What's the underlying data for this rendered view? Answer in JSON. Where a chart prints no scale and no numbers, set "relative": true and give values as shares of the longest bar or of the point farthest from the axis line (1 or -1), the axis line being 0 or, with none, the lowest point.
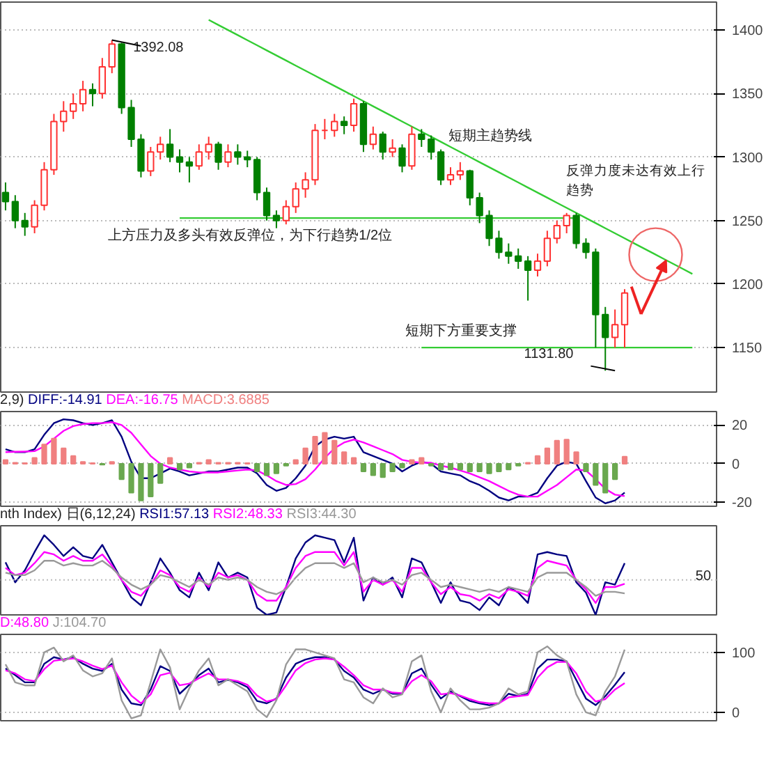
{
  "chart_data": [
    {
      "type": "candlestick",
      "categories": [
        null,
        null,
        null,
        null,
        null,
        null,
        null,
        null,
        null,
        null,
        null,
        null,
        null,
        null,
        null,
        null,
        null,
        null,
        null,
        null,
        null,
        null,
        null,
        null,
        null,
        null,
        null,
        null,
        null,
        null,
        null,
        null,
        null,
        null,
        null,
        null,
        null,
        null,
        null,
        null,
        null,
        null,
        null,
        null,
        null,
        null,
        null,
        null,
        null,
        null,
        null,
        null,
        null,
        null,
        null,
        null,
        null,
        null,
        null,
        null,
        null,
        null,
        null,
        null,
        null,
        null,
        null,
        null,
        null,
        null,
        null,
        null,
        null,
        null
      ],
      "ohlc": [
        [
          1272,
          1280,
          1258,
          1265
        ],
        [
          1265,
          1270,
          1244,
          1250
        ],
        [
          1250,
          1256,
          1238,
          1245
        ],
        [
          1245,
          1266,
          1240,
          1262
        ],
        [
          1262,
          1296,
          1258,
          1290
        ],
        [
          1290,
          1334,
          1286,
          1328
        ],
        [
          1328,
          1344,
          1320,
          1336
        ],
        [
          1336,
          1350,
          1330,
          1342
        ],
        [
          1342,
          1360,
          1336,
          1353
        ],
        [
          1353,
          1358,
          1340,
          1350
        ],
        [
          1350,
          1378,
          1346,
          1371
        ],
        [
          1371,
          1392.08,
          1366,
          1389
        ],
        [
          1389,
          1390,
          1334,
          1339
        ],
        [
          1339,
          1345,
          1308,
          1314
        ],
        [
          1314,
          1318,
          1284,
          1289
        ],
        [
          1289,
          1308,
          1285,
          1304
        ],
        [
          1304,
          1316,
          1298,
          1310
        ],
        [
          1310,
          1322,
          1296,
          1300
        ],
        [
          1300,
          1306,
          1288,
          1296
        ],
        [
          1296,
          1300,
          1280,
          1293
        ],
        [
          1293,
          1310,
          1290,
          1304
        ],
        [
          1304,
          1316,
          1298,
          1310
        ],
        [
          1310,
          1312,
          1290,
          1296
        ],
        [
          1296,
          1310,
          1292,
          1304
        ],
        [
          1304,
          1310,
          1294,
          1300
        ],
        [
          1300,
          1305,
          1292,
          1298
        ],
        [
          1298,
          1300,
          1266,
          1272
        ],
        [
          1272,
          1276,
          1250,
          1254
        ],
        [
          1254,
          1258,
          1244,
          1250
        ],
        [
          1250,
          1266,
          1247,
          1261
        ],
        [
          1261,
          1280,
          1256,
          1275
        ],
        [
          1275,
          1288,
          1268,
          1282
        ],
        [
          1282,
          1326,
          1278,
          1321
        ],
        [
          1321,
          1330,
          1314,
          1321
        ],
        [
          1321,
          1334,
          1316,
          1328
        ],
        [
          1328,
          1332,
          1318,
          1325
        ],
        [
          1325,
          1346,
          1320,
          1342
        ],
        [
          1342,
          1344,
          1304,
          1310
        ],
        [
          1310,
          1324,
          1306,
          1318
        ],
        [
          1318,
          1320,
          1298,
          1304
        ],
        [
          1304,
          1314,
          1300,
          1307
        ],
        [
          1307,
          1310,
          1288,
          1293
        ],
        [
          1293,
          1324,
          1290,
          1318
        ],
        [
          1318,
          1322,
          1308,
          1314
        ],
        [
          1314,
          1317,
          1298,
          1304
        ],
        [
          1304,
          1306,
          1278,
          1282
        ],
        [
          1282,
          1292,
          1278,
          1286
        ],
        [
          1286,
          1296,
          1282,
          1289
        ],
        [
          1289,
          1290,
          1262,
          1268
        ],
        [
          1268,
          1272,
          1248,
          1254
        ],
        [
          1254,
          1258,
          1230,
          1236
        ],
        [
          1236,
          1242,
          1220,
          1225
        ],
        [
          1225,
          1232,
          1216,
          1222
        ],
        [
          1222,
          1228,
          1212,
          1218
        ],
        [
          1218,
          1222,
          1187,
          1211
        ],
        [
          1211,
          1224,
          1206,
          1218
        ],
        [
          1218,
          1242,
          1214,
          1236
        ],
        [
          1236,
          1250,
          1232,
          1246
        ],
        [
          1246,
          1256,
          1240,
          1254
        ],
        [
          1254,
          1256,
          1228,
          1232
        ],
        [
          1232,
          1236,
          1220,
          1225
        ],
        [
          1225,
          1228,
          1150,
          1176
        ],
        [
          1176,
          1182,
          1131.8,
          1158
        ],
        [
          1158,
          1180,
          1150,
          1168
        ],
        [
          1168,
          1196,
          1150,
          1193
        ],
        null,
        null,
        null,
        null,
        null,
        null,
        null,
        null,
        null
      ],
      "series": [
        {
          "type": "line",
          "color": "#33cc33",
          "values": [
            null,
            null,
            null,
            null,
            null,
            null,
            null,
            null,
            null,
            null,
            null,
            null,
            null,
            null,
            null,
            null,
            null,
            null,
            null,
            null,
            null,
            1408,
            1404,
            1400,
            1396,
            1392,
            1388,
            1384,
            1380,
            1376,
            1372,
            1368,
            1364,
            1360,
            1356,
            1352,
            1348,
            1344,
            1340,
            1336,
            1332,
            1328,
            1324,
            1320,
            1316,
            1312,
            1308,
            1304,
            1300,
            1296,
            1292,
            1288,
            1284,
            1280,
            1276,
            1272,
            1268,
            1264,
            1260,
            1256,
            1252,
            1248,
            1244,
            1240,
            1236,
            1232,
            1228,
            1224,
            1220,
            1216,
            1212,
            1208,
            null,
            null
          ]
        },
        {
          "type": "line",
          "color": "#33cc33",
          "values": [
            null,
            null,
            null,
            null,
            null,
            null,
            null,
            null,
            null,
            null,
            null,
            null,
            null,
            null,
            null,
            null,
            null,
            null,
            1252,
            1252,
            1252,
            1252,
            1252,
            1252,
            1252,
            1252,
            1252,
            1252,
            1252,
            1252,
            1252,
            1252,
            1252,
            1252,
            1252,
            1252,
            1252,
            1252,
            1252,
            1252,
            1252,
            1252,
            1252,
            1252,
            1252,
            1252,
            1252,
            1252,
            1252,
            1252,
            1252,
            1252,
            1252,
            1252,
            1252,
            1252,
            1252,
            1252,
            1252,
            1252,
            null,
            null,
            null,
            null,
            null,
            null,
            null,
            null,
            null,
            null,
            null,
            null,
            null,
            null
          ]
        },
        {
          "type": "line",
          "color": "#33cc33",
          "values": [
            null,
            null,
            null,
            null,
            null,
            null,
            null,
            null,
            null,
            null,
            null,
            null,
            null,
            null,
            null,
            null,
            null,
            null,
            null,
            null,
            null,
            null,
            null,
            null,
            null,
            null,
            null,
            null,
            null,
            null,
            null,
            null,
            null,
            null,
            null,
            null,
            null,
            null,
            null,
            null,
            null,
            null,
            null,
            1150,
            1150,
            1150,
            1150,
            1150,
            1150,
            1150,
            1150,
            1150,
            1150,
            1150,
            1150,
            1150,
            1150,
            1150,
            1150,
            1150,
            1150,
            1150,
            1150,
            1150,
            1150,
            1150,
            1150,
            1150,
            1150,
            1150,
            1150,
            1150,
            null,
            null
          ]
        }
      ],
      "ylim": [
        1115,
        1422
      ],
      "yticks": [
        1150,
        1200,
        1250,
        1300,
        1350,
        1400
      ],
      "grid": "y",
      "tick_labels": "y",
      "annotations": [
        "1392.08",
        "1131.80",
        "短期主趋势线",
        "上方压力及多头有效反弹位，为下行趋势1/2位",
        "短期下方重要支撑",
        "反弹力度未达有效上行趋势"
      ]
    },
    {
      "type": "line",
      "title": "2,9)",
      "legend": "top left",
      "categories": [
        null,
        null,
        null,
        null,
        null,
        null,
        null,
        null,
        null,
        null,
        null,
        null,
        null,
        null,
        null,
        null,
        null,
        null,
        null,
        null,
        null,
        null,
        null,
        null,
        null,
        null,
        null,
        null,
        null,
        null,
        null,
        null,
        null,
        null,
        null,
        null,
        null,
        null,
        null,
        null,
        null,
        null,
        null,
        null,
        null,
        null,
        null,
        null,
        null,
        null,
        null,
        null,
        null,
        null,
        null,
        null,
        null,
        null,
        null,
        null,
        null,
        null,
        null,
        null,
        null,
        null,
        null,
        null,
        null,
        null,
        null,
        null,
        null,
        null
      ],
      "series": [
        {
          "name": "DIFF:-14.91",
          "color": "#000080",
          "values": [
            7.5,
            6,
            6,
            7.5,
            15,
            21,
            23,
            22.5,
            21,
            20,
            21,
            22.5,
            14,
            1,
            -7.5,
            -7.5,
            -5,
            -2.5,
            -4,
            -6,
            -5,
            -4,
            -4,
            -3,
            -2,
            -2,
            -5,
            -11,
            -14,
            -12.5,
            -7.5,
            -1,
            9,
            12.5,
            14,
            13,
            14,
            6,
            4,
            2,
            0,
            -4,
            -1,
            1,
            0,
            -4,
            -5,
            -6,
            -9,
            -11,
            -14,
            -17.5,
            -19,
            -17,
            -17,
            -15,
            -7.5,
            -1,
            1,
            0,
            -9,
            -17.5,
            -20.5,
            -19,
            -14.91,
            null,
            null,
            null,
            null,
            null,
            null,
            null,
            null,
            null
          ]
        },
        {
          "name": "DEA:-16.75",
          "color": "#ff00ff",
          "values": [
            6,
            6.2,
            6.3,
            6.5,
            9,
            13,
            17,
            19.5,
            20.5,
            21,
            21,
            21.5,
            20,
            16,
            10,
            4,
            0,
            -2,
            -3,
            -4,
            -4.5,
            -4.5,
            -4.5,
            -4,
            -3.5,
            -3,
            -3.5,
            -6,
            -9,
            -11,
            -10.5,
            -8,
            -3,
            3,
            8,
            11,
            12.5,
            11,
            9,
            7,
            5,
            2,
            1,
            0.5,
            0.5,
            -1,
            -2,
            -3.5,
            -5,
            -7,
            -9,
            -11.5,
            -14,
            -16,
            -17,
            -17,
            -14,
            -11,
            -7,
            -3,
            -3.5,
            -8,
            -13,
            -16,
            -16.75,
            null,
            null,
            null,
            null,
            null,
            null,
            null,
            null,
            null
          ]
        },
        {
          "name": "MACD:3.6885",
          "type": "bar",
          "values": [
            2,
            0.5,
            0.3,
            3,
            10,
            13,
            8,
            4,
            1,
            0.3,
            -0.5,
            1,
            -8,
            -15,
            -19,
            -17,
            -10,
            3,
            -3,
            -2,
            0.5,
            2,
            0.5,
            0.5,
            0.5,
            0.3,
            -4,
            -6,
            -5,
            -1,
            2,
            8,
            14,
            16,
            12,
            6,
            3,
            -4,
            -6,
            -7,
            -4,
            -2,
            2,
            3,
            -1,
            -3,
            -3,
            -3,
            -4,
            -4,
            -5,
            -4,
            -3,
            -1,
            0.5,
            4,
            8,
            12,
            12.5,
            6,
            -4,
            -11,
            -15,
            -8,
            3.6885,
            null,
            null,
            null,
            null,
            null,
            null,
            null,
            null,
            null
          ],
          "colors": [
            "#f08080",
            "#f08080",
            "#f08080",
            "#f08080",
            "#f08080",
            "#f08080",
            "#f08080",
            "#f08080",
            "#f08080",
            "#f08080",
            "#6aa84f",
            "#f08080",
            "#6aa84f",
            "#6aa84f",
            "#6aa84f",
            "#6aa84f",
            "#6aa84f",
            "#f08080",
            "#6aa84f",
            "#6aa84f",
            "#f08080",
            "#f08080",
            "#f08080",
            "#f08080",
            "#f08080",
            "#f08080",
            "#6aa84f",
            "#6aa84f",
            "#6aa84f",
            "#6aa84f",
            "#f08080",
            "#f08080",
            "#f08080",
            "#f08080",
            "#f08080",
            "#f08080",
            "#f08080",
            "#6aa84f",
            "#6aa84f",
            "#6aa84f",
            "#6aa84f",
            "#6aa84f",
            "#f08080",
            "#f08080",
            "#6aa84f",
            "#6aa84f",
            "#6aa84f",
            "#6aa84f",
            "#6aa84f",
            "#6aa84f",
            "#6aa84f",
            "#6aa84f",
            "#6aa84f",
            "#6aa84f",
            "#f08080",
            "#f08080",
            "#f08080",
            "#f08080",
            "#f08080",
            "#f08080",
            "#6aa84f",
            "#6aa84f",
            "#6aa84f",
            "#6aa84f",
            "#f08080",
            null,
            null,
            null,
            null,
            null,
            null,
            null,
            null,
            null
          ]
        }
      ],
      "ylim": [
        -22,
        27
      ],
      "yticks": [
        -20,
        0,
        20
      ],
      "grid": "y",
      "tick_labels": "y"
    },
    {
      "type": "line",
      "title": "nth Index) 日(6,12,24)",
      "legend": "top",
      "relative": true,
      "categories": [
        null,
        null,
        null,
        null,
        null,
        null,
        null,
        null,
        null,
        null,
        null,
        null,
        null,
        null,
        null,
        null,
        null,
        null,
        null,
        null,
        null,
        null,
        null,
        null,
        null,
        null,
        null,
        null,
        null,
        null,
        null,
        null,
        null,
        null,
        null,
        null,
        null,
        null,
        null,
        null,
        null,
        null,
        null,
        null,
        null,
        null,
        null,
        null,
        null,
        null,
        null,
        null,
        null,
        null,
        null,
        null,
        null,
        null,
        null,
        null,
        null,
        null,
        null,
        null,
        null,
        null,
        null,
        null,
        null,
        null,
        null,
        null,
        null,
        null
      ],
      "series": [
        {
          "name": "RSI1:57.13",
          "color": "#000080",
          "values": [
            0.66,
            0.41,
            0.56,
            0.79,
            1,
            0.88,
            0.74,
            0.85,
            0.74,
            0.71,
            0.88,
            0.66,
            0.44,
            0.22,
            0.12,
            0.41,
            0.71,
            0.53,
            0.31,
            0.22,
            0.53,
            0.31,
            0.66,
            0.47,
            0.53,
            0.47,
            0.09,
            0,
            0.03,
            0.35,
            0.71,
            0.91,
            1,
            0.97,
            0.94,
            0.66,
            0.97,
            0.18,
            0.47,
            0.38,
            0.47,
            0.22,
            0.71,
            0.66,
            0.41,
            0.15,
            0.41,
            0.18,
            0.15,
            0.06,
            0.22,
            0.12,
            0.35,
            0.28,
            0.15,
            0.76,
            0.79,
            0.76,
            0.74,
            0.41,
            0.28,
            0,
            0.41,
            0.38,
            0.65,
            null,
            null,
            null,
            null,
            null,
            null,
            null,
            null,
            null
          ]
        },
        {
          "name": "RSI2:48.33",
          "color": "#ff00ff",
          "values": [
            0.59,
            0.5,
            0.53,
            0.65,
            0.79,
            0.76,
            0.68,
            0.74,
            0.68,
            0.68,
            0.76,
            0.62,
            0.44,
            0.29,
            0.24,
            0.38,
            0.56,
            0.5,
            0.35,
            0.29,
            0.47,
            0.35,
            0.53,
            0.47,
            0.5,
            0.44,
            0.26,
            0.18,
            0.18,
            0.35,
            0.59,
            0.74,
            0.79,
            0.79,
            0.79,
            0.62,
            0.79,
            0.29,
            0.44,
            0.38,
            0.44,
            0.29,
            0.59,
            0.59,
            0.41,
            0.26,
            0.35,
            0.26,
            0.24,
            0.18,
            0.26,
            0.21,
            0.32,
            0.29,
            0.24,
            0.59,
            0.68,
            0.65,
            0.62,
            0.44,
            0.32,
            0.15,
            0.35,
            0.35,
            0.39,
            null,
            null,
            null,
            null,
            null,
            null,
            null,
            null,
            null
          ]
        },
        {
          "name": "RSI3:44.30",
          "color": "#999999",
          "values": [
            0.53,
            0.5,
            0.5,
            0.56,
            0.68,
            0.68,
            0.62,
            0.65,
            0.62,
            0.62,
            0.68,
            0.59,
            0.47,
            0.38,
            0.32,
            0.38,
            0.5,
            0.47,
            0.41,
            0.35,
            0.44,
            0.38,
            0.47,
            0.44,
            0.47,
            0.44,
            0.35,
            0.29,
            0.26,
            0.32,
            0.47,
            0.59,
            0.65,
            0.65,
            0.65,
            0.59,
            0.65,
            0.41,
            0.47,
            0.41,
            0.44,
            0.38,
            0.5,
            0.53,
            0.44,
            0.35,
            0.38,
            0.35,
            0.32,
            0.29,
            0.32,
            0.29,
            0.35,
            0.32,
            0.29,
            0.47,
            0.53,
            0.53,
            0.53,
            0.44,
            0.35,
            0.24,
            0.29,
            0.29,
            0.27,
            null,
            null,
            null,
            null,
            null,
            null,
            null,
            null,
            null
          ]
        }
      ],
      "ref_lines": [
        {
          "axis": "y",
          "value": 0.44,
          "color": "#bbbbbb",
          "line_style": "dotted"
        }
      ],
      "annotations": [
        "50"
      ],
      "tick_labels": "y"
    },
    {
      "type": "line",
      "legend": "top left",
      "categories": [
        null,
        null,
        null,
        null,
        null,
        null,
        null,
        null,
        null,
        null,
        null,
        null,
        null,
        null,
        null,
        null,
        null,
        null,
        null,
        null,
        null,
        null,
        null,
        null,
        null,
        null,
        null,
        null,
        null,
        null,
        null,
        null,
        null,
        null,
        null,
        null,
        null,
        null,
        null,
        null,
        null,
        null,
        null,
        null,
        null,
        null,
        null,
        null,
        null,
        null,
        null,
        null,
        null,
        null,
        null,
        null,
        null,
        null,
        null,
        null,
        null,
        null,
        null,
        null,
        null,
        null,
        null,
        null,
        null,
        null,
        null,
        null,
        null,
        null
      ],
      "series": [
        {
          "color": "#000080",
          "values": [
            73,
            62,
            50,
            50,
            81,
            92,
            88,
            92,
            81,
            73,
            69,
            81,
            38,
            15,
            12,
            38,
            77,
            69,
            31,
            46,
            62,
            73,
            50,
            54,
            50,
            42,
            19,
            15,
            23,
            58,
            81,
            88,
            92,
            92,
            88,
            69,
            58,
            38,
            31,
            38,
            31,
            31,
            65,
            73,
            46,
            23,
            35,
            27,
            19,
            15,
            12,
            15,
            31,
            27,
            31,
            73,
            88,
            88,
            85,
            54,
            23,
            12,
            27,
            46,
            67,
            null,
            null,
            null,
            null,
            null,
            null,
            null,
            null,
            null
          ]
        },
        {
          "name": "D:48.80",
          "color": "#ff00ff",
          "values": [
            70,
            65,
            55,
            52,
            72,
            86,
            88,
            90,
            85,
            78,
            72,
            78,
            50,
            28,
            15,
            30,
            62,
            66,
            45,
            48,
            57,
            65,
            55,
            55,
            52,
            46,
            28,
            18,
            22,
            45,
            70,
            82,
            88,
            90,
            88,
            76,
            62,
            45,
            38,
            38,
            33,
            32,
            52,
            62,
            52,
            30,
            32,
            28,
            22,
            17,
            15,
            15,
            25,
            27,
            29,
            58,
            75,
            84,
            84,
            65,
            35,
            18,
            22,
            38,
            48.8,
            null,
            null,
            null,
            null,
            null,
            null,
            null,
            null,
            null
          ]
        },
        {
          "name": "J:104.70",
          "color": "#999999",
          "values": [
            80,
            50,
            45,
            45,
            100,
            108,
            85,
            95,
            70,
            60,
            65,
            90,
            20,
            -10,
            -5,
            50,
            105,
            75,
            5,
            40,
            70,
            90,
            45,
            55,
            45,
            35,
            5,
            -8,
            20,
            80,
            105,
            105,
            100,
            95,
            90,
            55,
            50,
            25,
            15,
            40,
            25,
            30,
            85,
            95,
            35,
            0,
            40,
            20,
            5,
            5,
            8,
            15,
            40,
            30,
            35,
            100,
            110,
            95,
            85,
            30,
            0,
            -5,
            35,
            60,
            104.7,
            null,
            null,
            null,
            null,
            null,
            null,
            null,
            null,
            null
          ]
        }
      ],
      "ylim": [
        -14,
        130
      ],
      "yticks": [
        0,
        100
      ],
      "grid": "y",
      "tick_labels": "y"
    }
  ]
}
